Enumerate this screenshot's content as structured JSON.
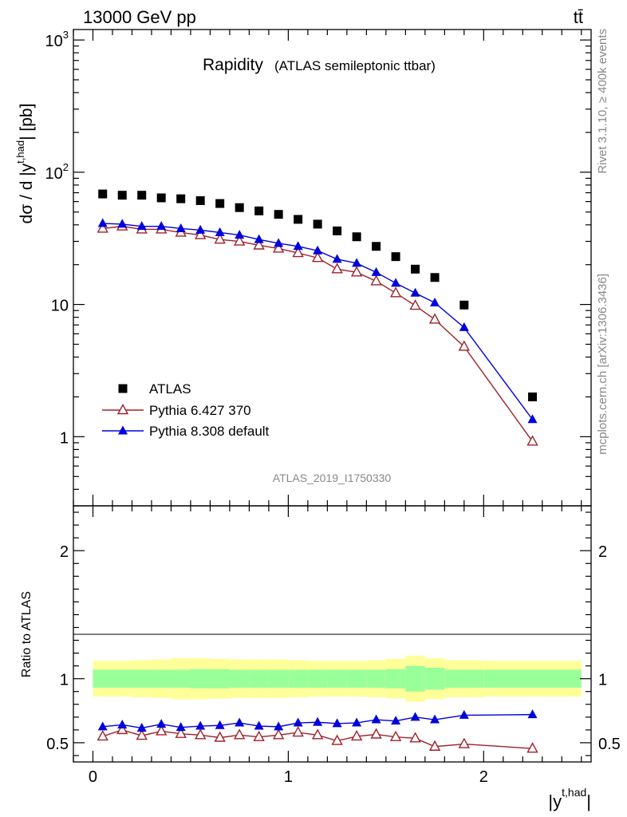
{
  "header": {
    "energy_label": "13000 GeV pp",
    "process_label": "tt̄"
  },
  "side_labels": {
    "rivet": "Rivet 3.1.10, ≥ 400k events",
    "mcplots": "mcplots.cern.ch [arXiv:1306.3436]"
  },
  "chart_data": [
    {
      "type": "scatter",
      "panel": "main",
      "title": "Rapidity",
      "subtitle": "(ATLAS semileptonic ttbar)",
      "watermark": "ATLAS_2019_I1750330",
      "ylabel_main": "dσ / d |y",
      "ylabel_sup": "t,had",
      "ylabel_tail": "| [pb]",
      "xlim": [
        -0.1,
        2.55
      ],
      "ylim": [
        0.3,
        1200
      ],
      "y_log": true,
      "grid": false,
      "legend_position": "bottom-left",
      "y_tick_labels": [
        {
          "value": 1,
          "label": "1"
        },
        {
          "value": 10,
          "label": "10"
        },
        {
          "value": 100,
          "label": "10",
          "exp": "2"
        },
        {
          "value": 1000,
          "label": "10",
          "exp": "3"
        }
      ],
      "x": [
        0.05,
        0.15,
        0.25,
        0.35,
        0.45,
        0.55,
        0.65,
        0.75,
        0.85,
        0.95,
        1.05,
        1.15,
        1.25,
        1.35,
        1.45,
        1.55,
        1.65,
        1.75,
        1.9,
        2.25
      ],
      "series": [
        {
          "name": "ATLAS",
          "marker": "square",
          "color": "#000000",
          "values": [
            68.5,
            67.0,
            67.0,
            64.0,
            63.0,
            61.0,
            58.0,
            54.0,
            51.0,
            48.0,
            44.0,
            40.5,
            36.0,
            32.5,
            27.5,
            23.0,
            18.5,
            16.0,
            9.9,
            2.0
          ]
        },
        {
          "name": "Pythia 6.427 370",
          "marker": "open-triangle",
          "color": "#a0202a",
          "values": [
            37.5,
            39.0,
            37.0,
            37.0,
            35.0,
            33.5,
            31.0,
            30.0,
            28.0,
            26.5,
            24.5,
            22.5,
            18.5,
            17.5,
            15.0,
            12.2,
            9.8,
            7.7,
            4.8,
            0.92
          ]
        },
        {
          "name": "Pythia 8.308 default",
          "marker": "filled-triangle",
          "color": "#0000dd",
          "values": [
            41.0,
            40.5,
            39.0,
            39.0,
            37.5,
            36.5,
            35.0,
            33.5,
            31.0,
            29.0,
            27.5,
            25.5,
            22.0,
            20.5,
            17.5,
            14.5,
            12.2,
            10.3,
            6.7,
            1.35
          ]
        }
      ]
    },
    {
      "type": "line",
      "panel": "ratio",
      "ylabel": "Ratio to ATLAS",
      "xlabel": "|y",
      "xlabel_sup": "t,had",
      "xlabel_tail": "|",
      "xlim": [
        -0.1,
        2.55
      ],
      "ylim": [
        0.35,
        2.35
      ],
      "x_ticks": [
        0,
        1,
        2
      ],
      "y_ticks": [
        0.5,
        1,
        2
      ],
      "y_tick_labels_right": true,
      "bins": [
        [
          0.0,
          0.1
        ],
        [
          0.1,
          0.2
        ],
        [
          0.2,
          0.3
        ],
        [
          0.3,
          0.4
        ],
        [
          0.4,
          0.5
        ],
        [
          0.5,
          0.6
        ],
        [
          0.6,
          0.7
        ],
        [
          0.7,
          0.8
        ],
        [
          0.8,
          0.9
        ],
        [
          0.9,
          1.0
        ],
        [
          1.0,
          1.1
        ],
        [
          1.1,
          1.2
        ],
        [
          1.2,
          1.3
        ],
        [
          1.3,
          1.4
        ],
        [
          1.4,
          1.5
        ],
        [
          1.5,
          1.6
        ],
        [
          1.6,
          1.7
        ],
        [
          1.7,
          1.8
        ],
        [
          1.8,
          2.0
        ],
        [
          2.0,
          2.5
        ]
      ],
      "band_inner": [
        0.07,
        0.07,
        0.07,
        0.07,
        0.07,
        0.075,
        0.075,
        0.07,
        0.07,
        0.07,
        0.07,
        0.07,
        0.07,
        0.07,
        0.07,
        0.075,
        0.1,
        0.085,
        0.07,
        0.07
      ],
      "band_outer": [
        0.14,
        0.14,
        0.145,
        0.15,
        0.16,
        0.16,
        0.155,
        0.15,
        0.15,
        0.15,
        0.145,
        0.14,
        0.14,
        0.14,
        0.145,
        0.155,
        0.18,
        0.16,
        0.145,
        0.14
      ],
      "band_inner_color": "#99ff99",
      "band_outer_color": "#ffff99",
      "x": [
        0.05,
        0.15,
        0.25,
        0.35,
        0.45,
        0.55,
        0.65,
        0.75,
        0.85,
        0.95,
        1.05,
        1.15,
        1.25,
        1.35,
        1.45,
        1.55,
        1.65,
        1.75,
        1.9,
        2.25
      ],
      "series": [
        {
          "name": "Pythia 6.427 370",
          "marker": "open-triangle",
          "color": "#a0202a",
          "values": [
            0.55,
            0.6,
            0.555,
            0.59,
            0.57,
            0.56,
            0.54,
            0.56,
            0.545,
            0.56,
            0.58,
            0.56,
            0.515,
            0.55,
            0.565,
            0.545,
            0.535,
            0.47,
            0.49,
            0.455
          ],
          "errors": [
            0.01,
            0.01,
            0.01,
            0.01,
            0.01,
            0.01,
            0.01,
            0.01,
            0.01,
            0.01,
            0.01,
            0.01,
            0.01,
            0.01,
            0.01,
            0.012,
            0.015,
            0.02,
            0.02,
            0.025
          ]
        },
        {
          "name": "Pythia 8.308 default",
          "marker": "filled-triangle",
          "color": "#0000dd",
          "values": [
            0.625,
            0.64,
            0.615,
            0.645,
            0.62,
            0.63,
            0.635,
            0.655,
            0.63,
            0.625,
            0.655,
            0.66,
            0.65,
            0.655,
            0.68,
            0.67,
            0.7,
            0.68,
            0.715,
            0.72
          ],
          "errors": [
            0.005,
            0.005,
            0.005,
            0.005,
            0.005,
            0.005,
            0.005,
            0.005,
            0.005,
            0.005,
            0.005,
            0.005,
            0.005,
            0.005,
            0.005,
            0.005,
            0.006,
            0.007,
            0.008,
            0.01
          ]
        }
      ]
    }
  ]
}
